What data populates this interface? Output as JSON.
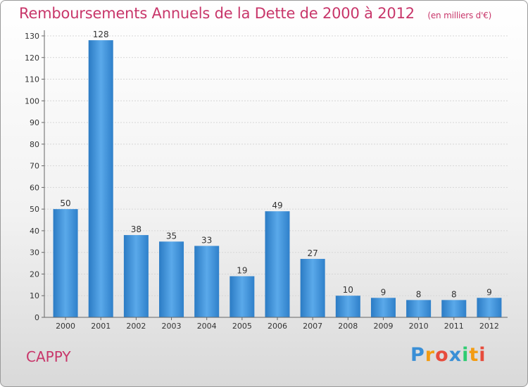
{
  "header": {
    "title": "Remboursements Annuels de la Dette de 2000 à 2012",
    "unit": "(en milliers d'€)"
  },
  "footer": {
    "commune": "CAPPY",
    "logo_text": "Proxiti",
    "logo_letters": [
      {
        "char": "P",
        "color": "#3a8fd6"
      },
      {
        "char": "r",
        "color": "#f39c12"
      },
      {
        "char": "o",
        "color": "#e74c3c"
      },
      {
        "char": "x",
        "color": "#3a8fd6"
      },
      {
        "char": "i",
        "color": "#2ecc71"
      },
      {
        "char": "t",
        "color": "#f39c12"
      },
      {
        "char": "i",
        "color": "#e74c3c"
      }
    ]
  },
  "chart_data": {
    "type": "bar",
    "categories": [
      "2000",
      "2001",
      "2002",
      "2003",
      "2004",
      "2005",
      "2006",
      "2007",
      "2008",
      "2009",
      "2010",
      "2011",
      "2012"
    ],
    "values": [
      50,
      128,
      38,
      35,
      33,
      19,
      49,
      27,
      10,
      9,
      8,
      8,
      9
    ],
    "title": "Remboursements Annuels de la Dette de 2000 à 2012",
    "xlabel": "",
    "ylabel": "",
    "ylim": [
      0,
      130
    ],
    "yticks": [
      0,
      10,
      20,
      30,
      40,
      50,
      60,
      70,
      80,
      90,
      100,
      110,
      120,
      130
    ],
    "grid": true,
    "legend": "none",
    "bar_color": "#3d8fd8"
  }
}
